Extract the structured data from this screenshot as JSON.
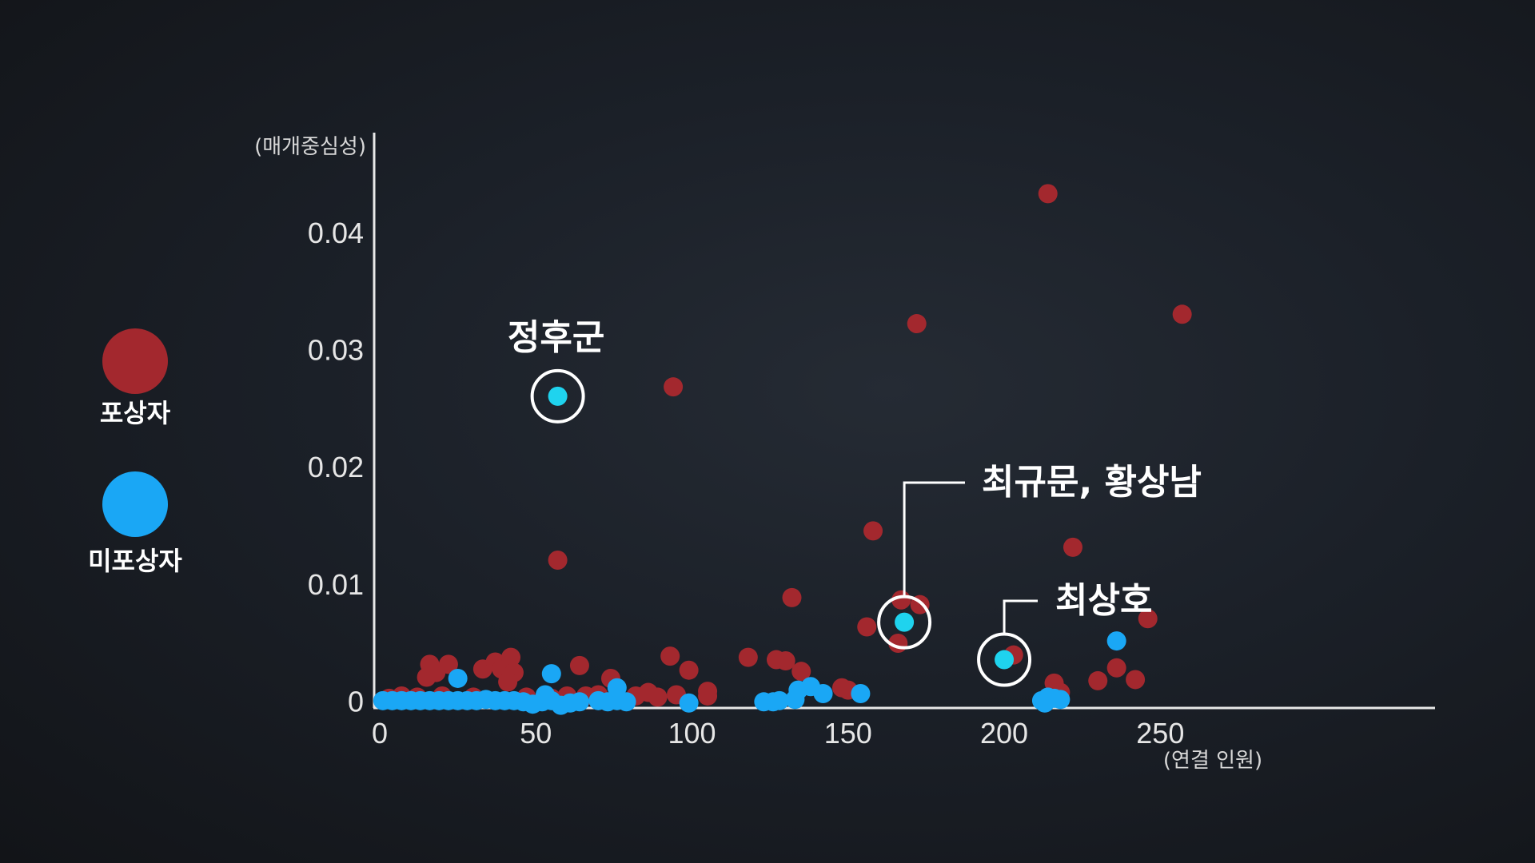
{
  "chart_data": {
    "type": "scatter",
    "xlabel": "(연결 인원)",
    "ylabel": "(매개중심성)",
    "xlim": [
      0,
      338
    ],
    "ylim": [
      -0.0008,
      0.048
    ],
    "x_ticks": [
      {
        "value": 0,
        "label": "0"
      },
      {
        "value": 50,
        "label": "50"
      },
      {
        "value": 100,
        "label": "100"
      },
      {
        "value": 150,
        "label": "150"
      },
      {
        "value": 200,
        "label": "200"
      },
      {
        "value": 250,
        "label": "250"
      }
    ],
    "y_ticks": [
      {
        "value": 0,
        "label": "0"
      },
      {
        "value": 0.01,
        "label": "0.01"
      },
      {
        "value": 0.02,
        "label": "0.02"
      },
      {
        "value": 0.03,
        "label": "0.03"
      },
      {
        "value": 0.04,
        "label": "0.04"
      }
    ],
    "series": [
      {
        "name": "포상자",
        "color": "#a3282e",
        "points": [
          [
            214,
            0.0434
          ],
          [
            172,
            0.0323
          ],
          [
            257,
            0.0331
          ],
          [
            94,
            0.0269
          ],
          [
            57,
            0.0121
          ],
          [
            158,
            0.0146
          ],
          [
            222,
            0.0132
          ],
          [
            132,
            0.0089
          ],
          [
            156,
            0.0064
          ],
          [
            167,
            0.0087
          ],
          [
            173,
            0.0083
          ],
          [
            166,
            0.005
          ],
          [
            203,
            0.004
          ],
          [
            246,
            0.0071
          ],
          [
            236,
            0.0029
          ],
          [
            230,
            0.0018
          ],
          [
            242,
            0.0019
          ],
          [
            216,
            0.0016
          ],
          [
            218,
            0.0008
          ],
          [
            16,
            0.0032
          ],
          [
            22,
            0.0032
          ],
          [
            15,
            0.0021
          ],
          [
            18,
            0.0025
          ],
          [
            33,
            0.0028
          ],
          [
            37,
            0.0034
          ],
          [
            39,
            0.0028
          ],
          [
            42,
            0.0038
          ],
          [
            43,
            0.0025
          ],
          [
            41,
            0.0017
          ],
          [
            64,
            0.0031
          ],
          [
            74,
            0.002
          ],
          [
            93,
            0.0039
          ],
          [
            99,
            0.0027
          ],
          [
            105,
            0.0009
          ],
          [
            105,
            0.0005
          ],
          [
            118,
            0.0038
          ],
          [
            127,
            0.0036
          ],
          [
            130,
            0.0035
          ],
          [
            135,
            0.0026
          ],
          [
            150,
            0.001
          ],
          [
            148,
            0.0012
          ],
          [
            95,
            0.0006
          ],
          [
            89,
            0.0004
          ],
          [
            86,
            0.0008
          ],
          [
            82,
            0.0005
          ],
          [
            70,
            0.0006
          ],
          [
            66,
            0.0005
          ],
          [
            60,
            0.0005
          ],
          [
            55,
            0.0003
          ],
          [
            47,
            0.0004
          ],
          [
            30,
            0.0004
          ],
          [
            20,
            0.0005
          ],
          [
            12,
            0.0004
          ],
          [
            7,
            0.0005
          ],
          [
            3,
            0.0003
          ]
        ]
      },
      {
        "name": "미포상자",
        "color": "#1aa7f5",
        "points": [
          [
            1,
            0.0001
          ],
          [
            4,
            0.0001
          ],
          [
            7,
            0.0001
          ],
          [
            10,
            0.0001
          ],
          [
            13,
            0.0001
          ],
          [
            16,
            0.0001
          ],
          [
            19,
            0.0001
          ],
          [
            22,
            0.0001
          ],
          [
            25,
            0.0001
          ],
          [
            28,
            0.0001
          ],
          [
            31,
            0.0001
          ],
          [
            34,
            0.0002
          ],
          [
            37,
            0.0001
          ],
          [
            40,
            0.0001
          ],
          [
            43,
            0.0001
          ],
          [
            46,
            0.0
          ],
          [
            49,
            -0.0002
          ],
          [
            52,
            0.0
          ],
          [
            55,
            0.0001
          ],
          [
            58,
            -0.0003
          ],
          [
            61,
            -0.0001
          ],
          [
            64,
            0.0
          ],
          [
            70,
            0.0001
          ],
          [
            73,
            0.0
          ],
          [
            76,
            0.0001
          ],
          [
            79,
            0.0
          ],
          [
            99,
            -0.0001
          ],
          [
            123,
            0.0
          ],
          [
            126,
            0.0
          ],
          [
            128,
            0.0001
          ],
          [
            133,
            0.0002
          ],
          [
            134,
            0.001
          ],
          [
            138,
            0.0013
          ],
          [
            142,
            0.0007
          ],
          [
            154,
            0.0007
          ],
          [
            25,
            0.002
          ],
          [
            53,
            0.0006
          ],
          [
            55,
            0.0024
          ],
          [
            76,
            0.0012
          ],
          [
            212,
            0.0001
          ],
          [
            214,
            0.0004
          ],
          [
            216,
            0.0003
          ],
          [
            218,
            0.0002
          ],
          [
            213,
            -0.0001
          ],
          [
            236,
            0.0052
          ]
        ]
      }
    ],
    "highlighted": [
      {
        "label": "정후군",
        "color": "#1fd3ee",
        "x": 57,
        "y": 0.0261
      },
      {
        "label": "최규문, 황상남",
        "color": "#1fd3ee",
        "x": 168,
        "y": 0.0068
      },
      {
        "label": "최상호",
        "color": "#1fd3ee",
        "x": 200,
        "y": 0.0036
      }
    ],
    "legend": {
      "position": "left",
      "items": [
        {
          "label": "포상자",
          "color": "#a3282e"
        },
        {
          "label": "미포상자",
          "color": "#1aa7f5"
        }
      ]
    },
    "axis_color": "#e8e8e8",
    "grid": false
  }
}
